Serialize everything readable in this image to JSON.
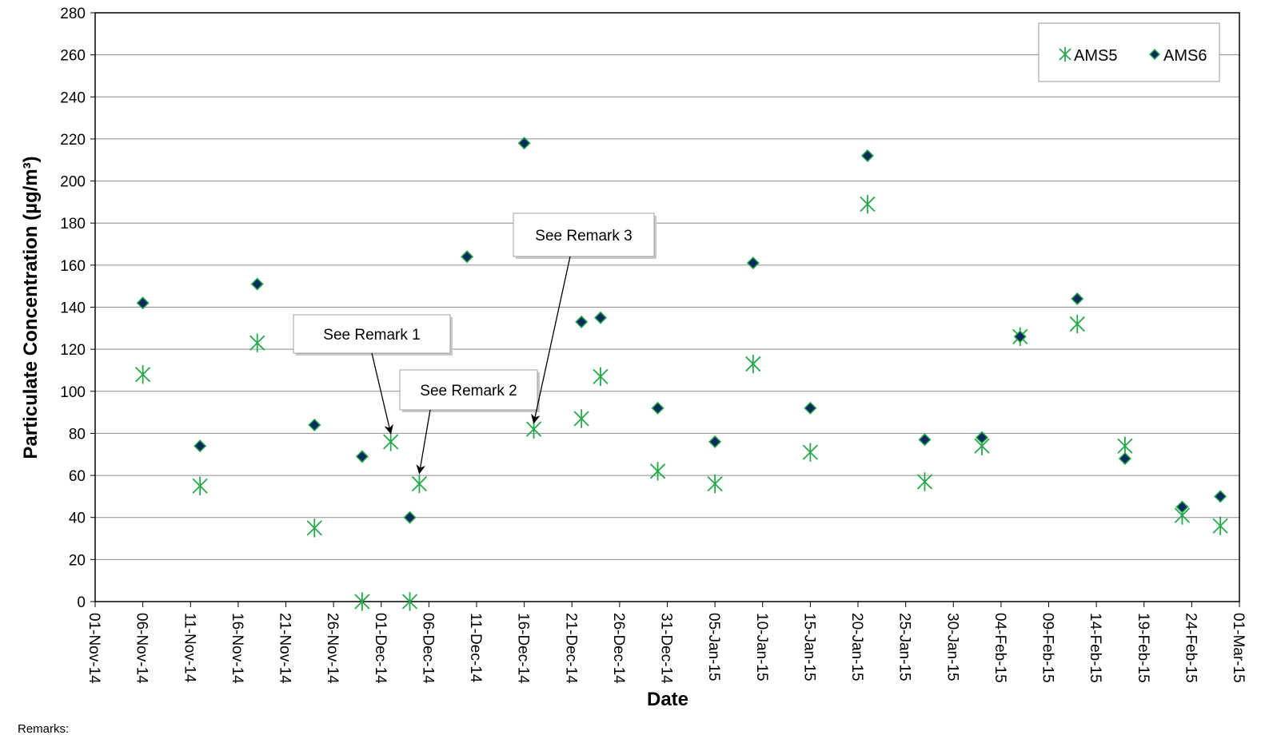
{
  "title": "",
  "chart_data": {
    "type": "scatter",
    "title": "",
    "xlabel": "Date",
    "ylabel": "Particulate Concentration (µg/m³)",
    "ylim": [
      0,
      280
    ],
    "yticks": [
      0,
      20,
      40,
      60,
      80,
      100,
      120,
      140,
      160,
      180,
      200,
      220,
      240,
      260,
      280
    ],
    "xlim": [
      "2014-11-01",
      "2015-03-01"
    ],
    "xtick_labels": [
      "01-Nov-14",
      "06-Nov-14",
      "11-Nov-14",
      "16-Nov-14",
      "21-Nov-14",
      "26-Nov-14",
      "01-Dec-14",
      "06-Dec-14",
      "11-Dec-14",
      "16-Dec-14",
      "21-Dec-14",
      "26-Dec-14",
      "31-Dec-14",
      "05-Jan-15",
      "10-Jan-15",
      "15-Jan-15",
      "20-Jan-15",
      "25-Jan-15",
      "30-Jan-15",
      "04-Feb-15",
      "09-Feb-15",
      "14-Feb-15",
      "19-Feb-15",
      "24-Feb-15",
      "01-Mar-15"
    ],
    "xtick_dates": [
      "2014-11-01",
      "2014-11-06",
      "2014-11-11",
      "2014-11-16",
      "2014-11-21",
      "2014-11-26",
      "2014-12-01",
      "2014-12-06",
      "2014-12-11",
      "2014-12-16",
      "2014-12-21",
      "2014-12-26",
      "2014-12-31",
      "2015-01-05",
      "2015-01-10",
      "2015-01-15",
      "2015-01-20",
      "2015-01-25",
      "2015-01-30",
      "2015-02-04",
      "2015-02-09",
      "2015-02-14",
      "2015-02-19",
      "2015-02-24",
      "2015-03-01"
    ],
    "grid": true,
    "legend_position": "top-right",
    "series": [
      {
        "name": "AMS5",
        "marker": "asterisk",
        "color": "#27a84a",
        "points": [
          {
            "x": "2014-11-06",
            "y": 108
          },
          {
            "x": "2014-11-12",
            "y": 55
          },
          {
            "x": "2014-11-18",
            "y": 123
          },
          {
            "x": "2014-11-24",
            "y": 35
          },
          {
            "x": "2014-11-29",
            "y": 0
          },
          {
            "x": "2014-12-02",
            "y": 76
          },
          {
            "x": "2014-12-04",
            "y": 0
          },
          {
            "x": "2014-12-05",
            "y": 56
          },
          {
            "x": "2014-12-17",
            "y": 82
          },
          {
            "x": "2014-12-22",
            "y": 87
          },
          {
            "x": "2014-12-24",
            "y": 107
          },
          {
            "x": "2014-12-30",
            "y": 62
          },
          {
            "x": "2015-01-05",
            "y": 56
          },
          {
            "x": "2015-01-09",
            "y": 113
          },
          {
            "x": "2015-01-15",
            "y": 71
          },
          {
            "x": "2015-01-21",
            "y": 189
          },
          {
            "x": "2015-01-27",
            "y": 57
          },
          {
            "x": "2015-02-02",
            "y": 74
          },
          {
            "x": "2015-02-06",
            "y": 126
          },
          {
            "x": "2015-02-12",
            "y": 132
          },
          {
            "x": "2015-02-17",
            "y": 74
          },
          {
            "x": "2015-02-23",
            "y": 41
          },
          {
            "x": "2015-02-27",
            "y": 36
          }
        ]
      },
      {
        "name": "AMS6",
        "marker": "diamond",
        "color": "#0b2a5e",
        "edge_color": "#27a84a",
        "points": [
          {
            "x": "2014-11-06",
            "y": 142
          },
          {
            "x": "2014-11-12",
            "y": 74
          },
          {
            "x": "2014-11-18",
            "y": 151
          },
          {
            "x": "2014-11-24",
            "y": 84
          },
          {
            "x": "2014-11-29",
            "y": 69
          },
          {
            "x": "2014-12-04",
            "y": 40
          },
          {
            "x": "2014-12-10",
            "y": 164
          },
          {
            "x": "2014-12-16",
            "y": 218
          },
          {
            "x": "2014-12-22",
            "y": 133
          },
          {
            "x": "2014-12-24",
            "y": 135
          },
          {
            "x": "2014-12-30",
            "y": 92
          },
          {
            "x": "2015-01-05",
            "y": 76
          },
          {
            "x": "2015-01-09",
            "y": 161
          },
          {
            "x": "2015-01-15",
            "y": 92
          },
          {
            "x": "2015-01-21",
            "y": 212
          },
          {
            "x": "2015-01-27",
            "y": 77
          },
          {
            "x": "2015-02-02",
            "y": 78
          },
          {
            "x": "2015-02-06",
            "y": 126
          },
          {
            "x": "2015-02-12",
            "y": 144
          },
          {
            "x": "2015-02-17",
            "y": 68
          },
          {
            "x": "2015-02-23",
            "y": 45
          },
          {
            "x": "2015-02-27",
            "y": 50
          }
        ]
      }
    ],
    "annotations": [
      {
        "text": "See Remark 1",
        "target": {
          "x": "2014-12-02",
          "y": 80
        }
      },
      {
        "text": "See Remark 2",
        "target": {
          "x": "2014-12-05",
          "y": 61
        }
      },
      {
        "text": "See Remark 3",
        "target": {
          "x": "2014-12-17",
          "y": 85
        }
      }
    ]
  },
  "remarks_label": "Remarks:"
}
